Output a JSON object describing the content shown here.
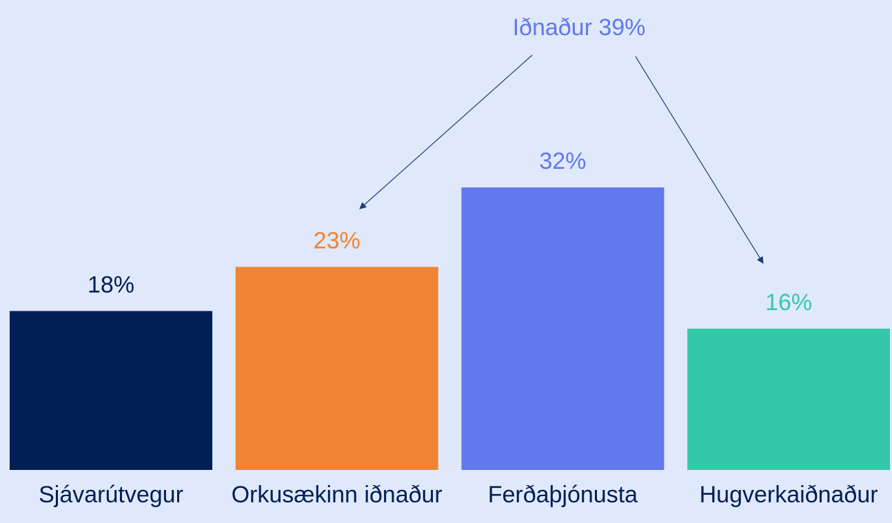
{
  "chart_data": {
    "type": "bar",
    "annotation": "Iðnaður 39%",
    "categories": [
      "Sjávarútvegur",
      "Orkusækinn iðnaður",
      "Ferðaþjónusta",
      "Hugverkaiðnaður"
    ],
    "values": [
      18,
      23,
      32,
      16
    ],
    "value_labels": [
      "18%",
      "23%",
      "32%",
      "16%"
    ],
    "colors": [
      "#001f54",
      "#f08434",
      "#6178ee",
      "#36c9a9"
    ]
  }
}
